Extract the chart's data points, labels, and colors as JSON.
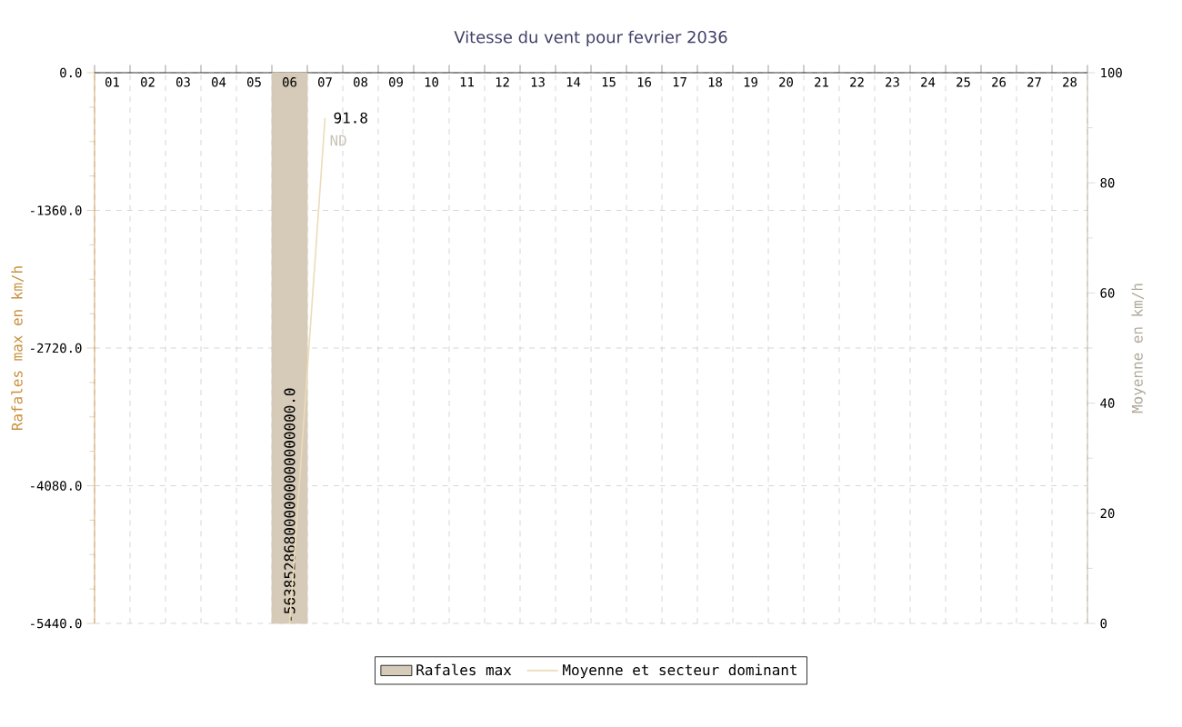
{
  "chart_data": {
    "type": "bar",
    "title": "Vitesse du vent pour fevrier 2036",
    "ylabel": "Rafales max en km/h",
    "y2label": "Moyenne en km/h",
    "categories": [
      "01",
      "02",
      "03",
      "04",
      "05",
      "06",
      "07",
      "08",
      "09",
      "10",
      "11",
      "12",
      "13",
      "14",
      "15",
      "16",
      "17",
      "18",
      "19",
      "20",
      "21",
      "22",
      "23",
      "24",
      "25",
      "26",
      "27",
      "28"
    ],
    "series": [
      {
        "name": "Rafales max",
        "color": "#d6cab8",
        "values": [
          null,
          null,
          null,
          null,
          null,
          -5440,
          null,
          null,
          null,
          null,
          null,
          null,
          null,
          null,
          null,
          null,
          null,
          null,
          null,
          null,
          null,
          null,
          null,
          null,
          null,
          null,
          null,
          null
        ]
      },
      {
        "name": "Moyenne et secteur dominant",
        "type": "line",
        "axis": "y2",
        "color": "#ecdcb8",
        "values": [
          null,
          null,
          null,
          null,
          null,
          0,
          91.8,
          null,
          null,
          null,
          null,
          null,
          null,
          null,
          null,
          null,
          null,
          null,
          null,
          null,
          null,
          null,
          null,
          null,
          null,
          null,
          null,
          null
        ],
        "value_labels": [
          null,
          null,
          null,
          null,
          null,
          null,
          "91.8",
          null,
          null,
          null,
          null,
          null,
          null,
          null,
          null,
          null,
          null,
          null,
          null,
          null,
          null,
          null,
          null,
          null,
          null,
          null,
          null,
          null
        ]
      }
    ],
    "ylim": [
      -5440,
      0
    ],
    "yticks": [
      {
        "value": -5440,
        "label": "-5440.0"
      },
      {
        "value": -4080,
        "label": "-4080.0"
      },
      {
        "value": -2720,
        "label": "-2720.0"
      },
      {
        "value": -1360,
        "label": "-1360.0"
      },
      {
        "value": 0,
        "label": "0.0"
      }
    ],
    "y2lim": [
      0,
      100
    ],
    "y2ticks": [
      0,
      20,
      40,
      60,
      80,
      100
    ],
    "annotations": [
      {
        "text": "-563852868000000000000000.0",
        "x": "06"
      },
      {
        "text": "ND",
        "x": "07"
      }
    ],
    "grid": true,
    "legend": "bottom",
    "marker": "none",
    "line_style": "solid"
  }
}
